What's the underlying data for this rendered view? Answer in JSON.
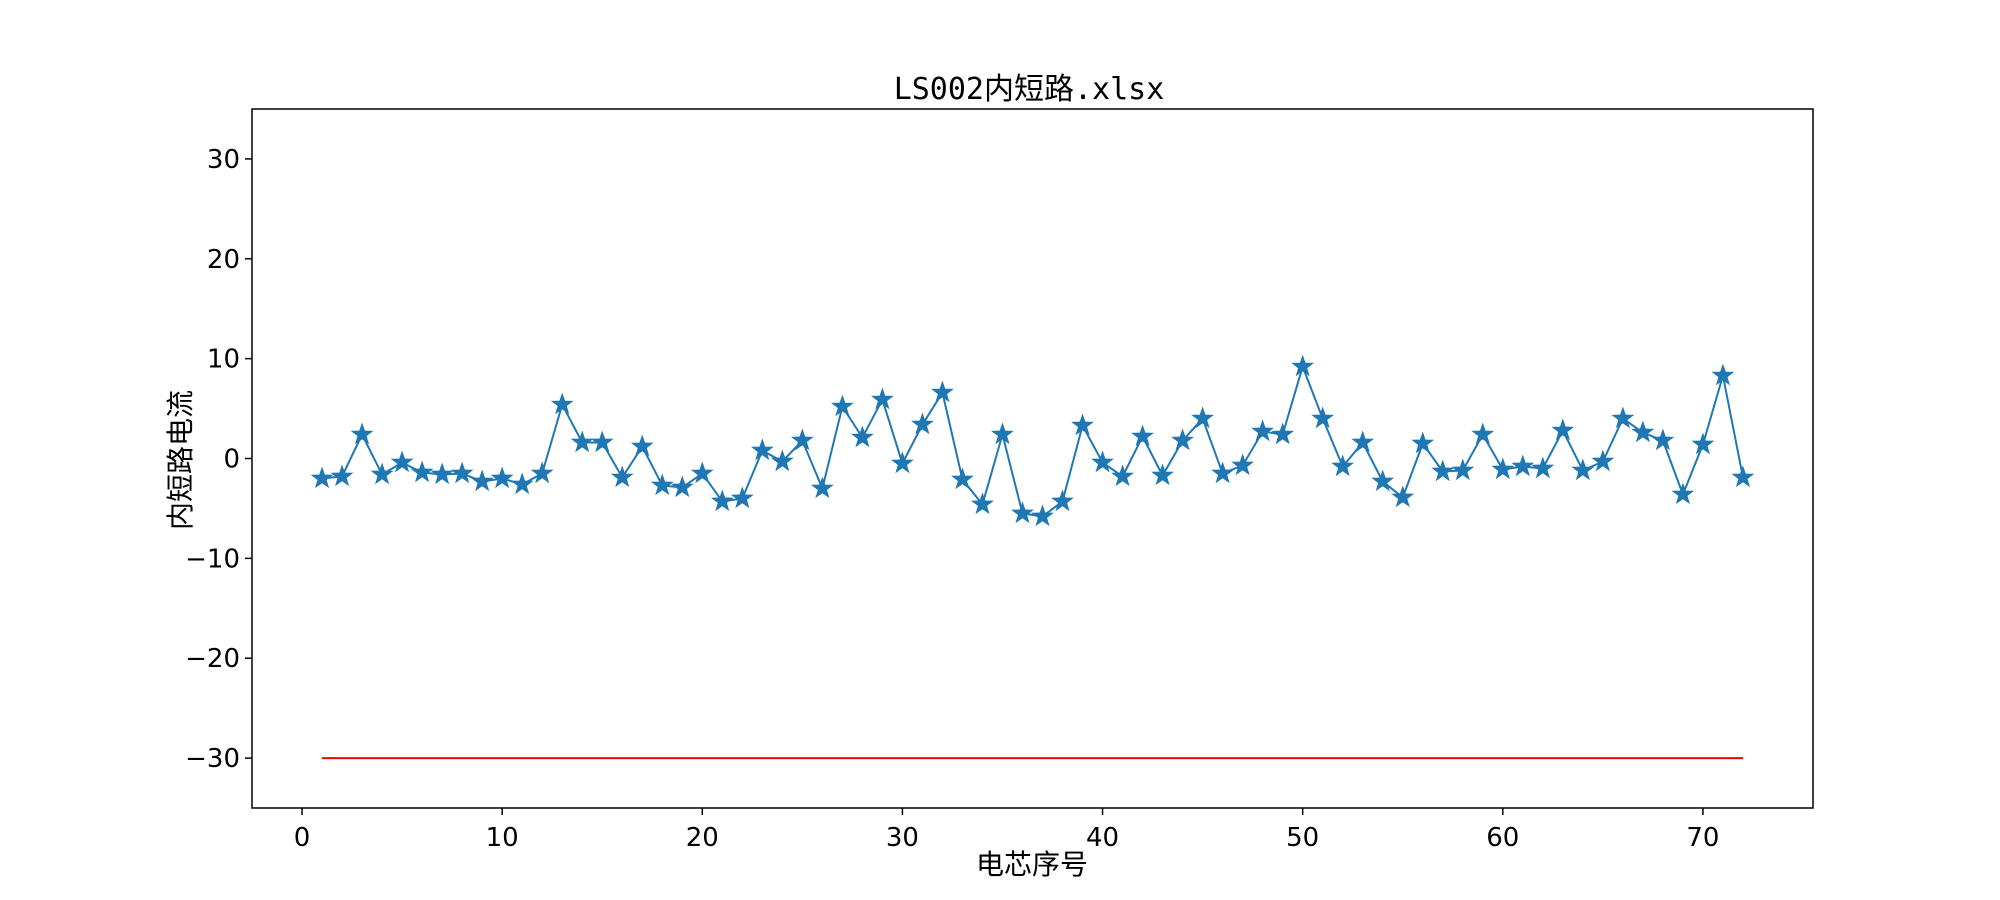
{
  "chart_data": {
    "type": "line",
    "title": "LS002内短路.xlsx",
    "xlabel": "电芯序号",
    "ylabel": "内短路电流",
    "xlim": [
      -2.5,
      75.5
    ],
    "ylim": [
      -35,
      35
    ],
    "xticks": [
      0,
      10,
      20,
      30,
      40,
      50,
      60,
      70
    ],
    "yticks": [
      -30,
      -20,
      -10,
      0,
      10,
      20,
      30
    ],
    "grid": false,
    "series": [
      {
        "marker": "star",
        "color": "#1f77b4",
        "x": [
          1,
          2,
          3,
          4,
          5,
          6,
          7,
          8,
          9,
          10,
          11,
          12,
          13,
          14,
          15,
          16,
          17,
          18,
          19,
          20,
          21,
          22,
          23,
          24,
          25,
          26,
          27,
          28,
          29,
          30,
          31,
          32,
          33,
          34,
          35,
          36,
          37,
          38,
          39,
          40,
          41,
          42,
          43,
          44,
          45,
          46,
          47,
          48,
          49,
          50,
          51,
          52,
          53,
          54,
          55,
          56,
          57,
          58,
          59,
          60,
          61,
          62,
          63,
          64,
          65,
          66,
          67,
          68,
          69,
          70,
          71,
          72
        ],
        "values": [
          -2.0,
          -1.8,
          2.4,
          -1.6,
          -0.4,
          -1.4,
          -1.6,
          -1.5,
          -2.3,
          -2.0,
          -2.6,
          -1.5,
          5.4,
          1.6,
          1.6,
          -1.9,
          1.2,
          -2.7,
          -2.9,
          -1.5,
          -4.3,
          -4.0,
          0.8,
          -0.3,
          1.8,
          -3.0,
          5.2,
          2.1,
          5.9,
          -0.5,
          3.4,
          6.6,
          -2.1,
          -4.6,
          2.4,
          -5.5,
          -5.8,
          -4.3,
          3.3,
          -0.4,
          -1.8,
          2.2,
          -1.7,
          1.8,
          4.0,
          -1.5,
          -0.7,
          2.7,
          2.4,
          9.2,
          4.0,
          -0.8,
          1.6,
          -2.3,
          -3.9,
          1.5,
          -1.3,
          -1.2,
          2.4,
          -1.1,
          -0.8,
          -1.0,
          2.8,
          -1.2,
          -0.3,
          4.0,
          2.6,
          1.8,
          -3.6,
          1.4,
          8.3,
          -1.9
        ]
      },
      {
        "color": "#ff0000",
        "x": [
          1,
          72
        ],
        "values": [
          -30,
          -30
        ]
      }
    ]
  }
}
